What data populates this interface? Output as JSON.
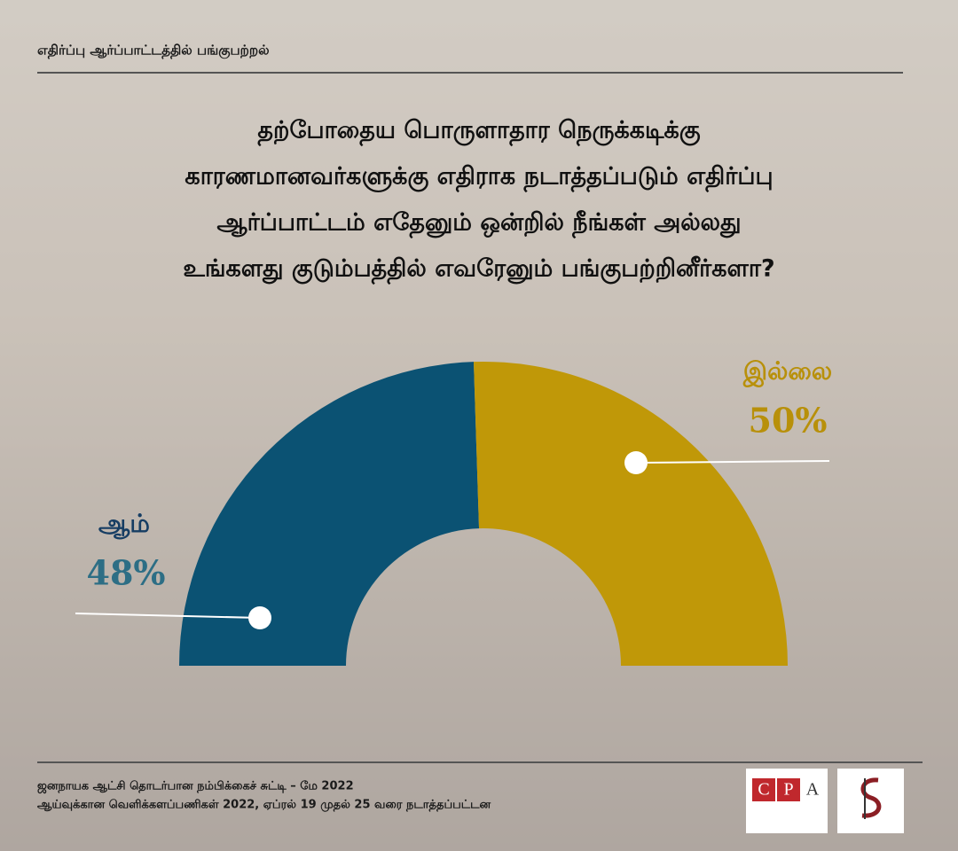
{
  "header": {
    "title": "எதிர்ப்பு ஆர்ப்பாட்டத்தில் பங்குபற்றல்"
  },
  "chart_data": {
    "type": "pie",
    "title": [
      "தற்போதைய பொருளாதார நெருக்கடிக்கு",
      "காரணமானவர்களுக்கு எதிராக நடாத்தப்படும் எதிர்ப்பு",
      "ஆர்ப்பாட்டம் எதேனும் ஒன்றில் நீங்கள் அல்லது",
      "உங்களது குடும்பத்தில் எவரேனும் பங்குபற்றினீர்களா?"
    ],
    "categories": [
      "ஆம்",
      "இல்லை"
    ],
    "values": [
      48,
      50
    ],
    "value_labels": [
      "48%",
      "50%"
    ],
    "colors": [
      "#0b5273",
      "#c09808"
    ]
  },
  "footer": {
    "lines": [
      "ஜனநாயக ஆட்சி தொடர்பான நம்பிக்கைச் சுட்டி – மே 2022",
      "ஆய்வுக்கான வெளிக்களப்பணிகள் 2022, ஏப்ரல் 19 முதல் 25 வரை நடாத்தப்பட்டன"
    ]
  },
  "logos": {
    "cpa": [
      "C",
      "P",
      "A"
    ]
  }
}
